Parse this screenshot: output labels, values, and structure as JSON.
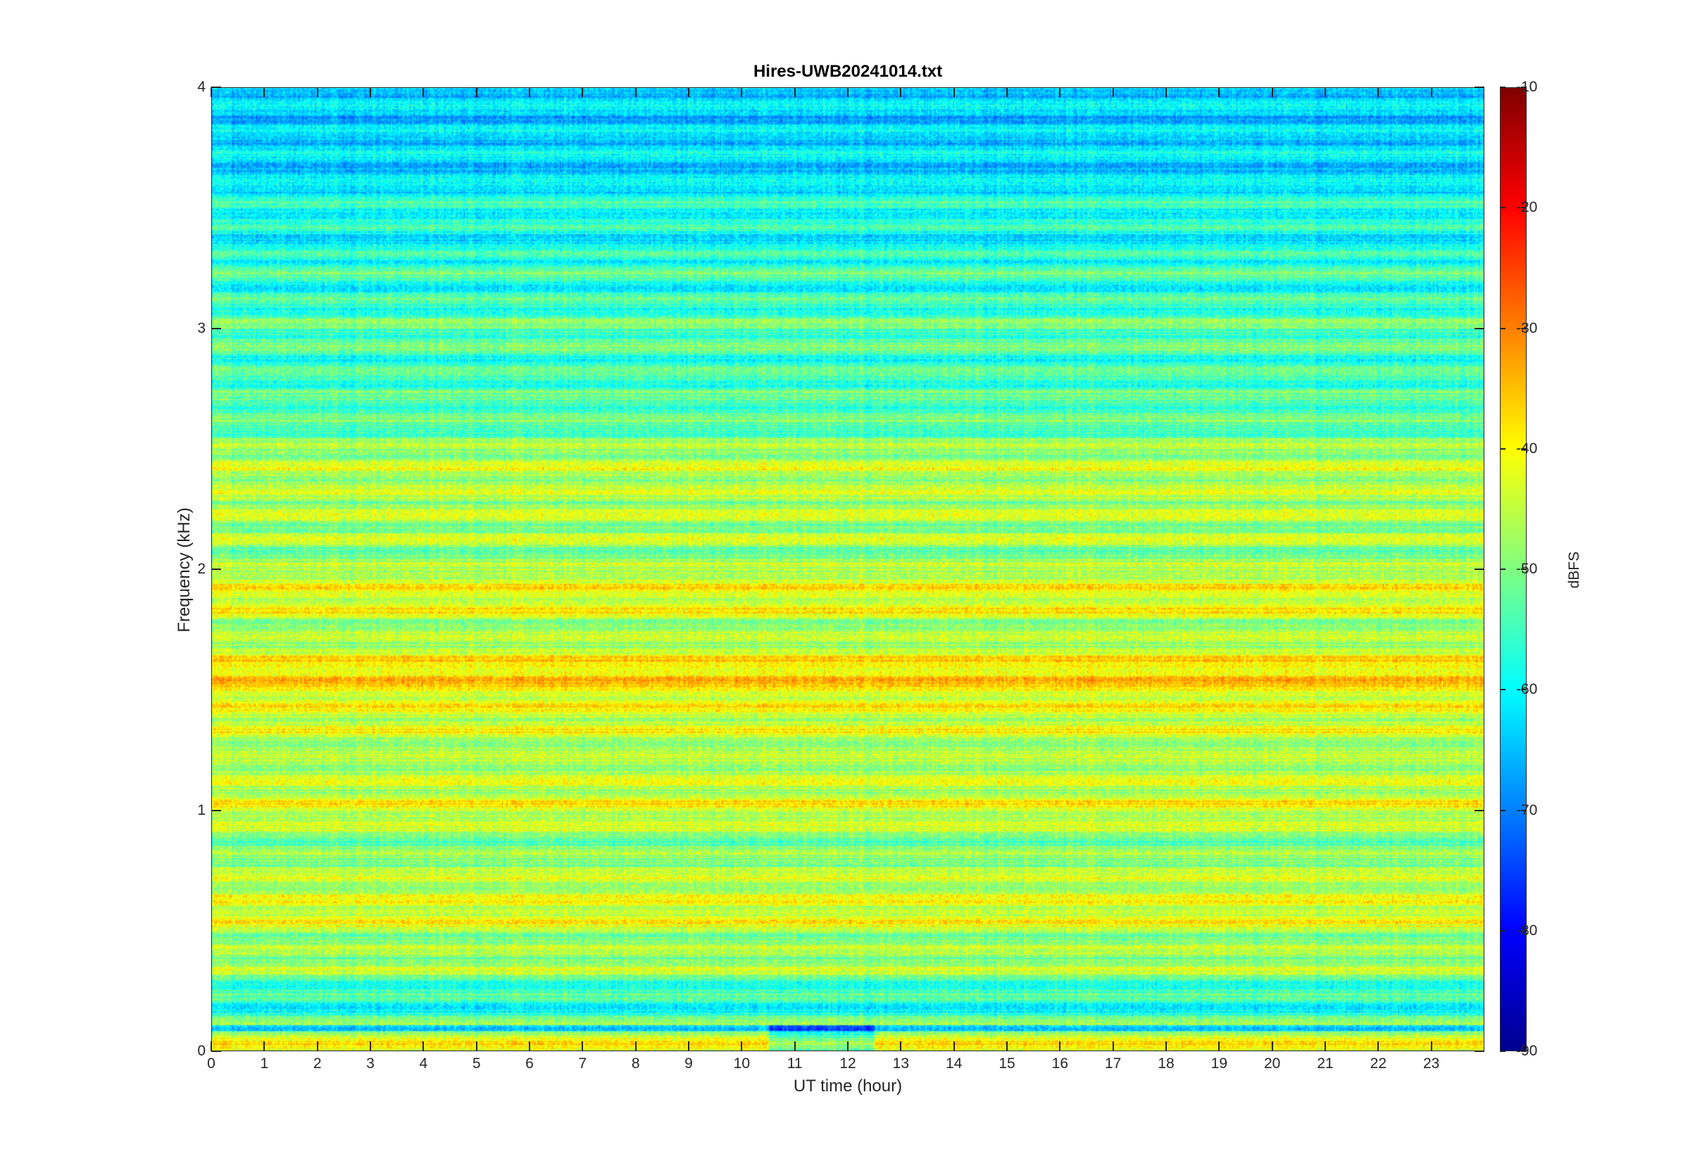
{
  "chart_data": {
    "type": "heatmap",
    "title": "Hires-UWB20241014.txt",
    "xlabel": "UT time (hour)",
    "ylabel": "Frequency (kHz)",
    "colorbar_label": "dBFS",
    "xlim": [
      0,
      24
    ],
    "ylim": [
      0,
      4
    ],
    "clim": [
      -90,
      -10
    ],
    "colormap": "jet",
    "x_ticks": [
      0,
      1,
      2,
      3,
      4,
      5,
      6,
      7,
      8,
      9,
      10,
      11,
      12,
      13,
      14,
      15,
      16,
      17,
      18,
      19,
      20,
      21,
      22,
      23
    ],
    "y_ticks": [
      0,
      1,
      2,
      3,
      4
    ],
    "colorbar_ticks": [
      -90,
      -80,
      -70,
      -60,
      -50,
      -40,
      -30,
      -20,
      -10
    ],
    "frequency_band_profile": {
      "frequency_khz": [
        0.05,
        0.15,
        0.25,
        0.35,
        0.45,
        0.55,
        0.65,
        0.75,
        0.85,
        0.95,
        1.05,
        1.15,
        1.25,
        1.35,
        1.45,
        1.55,
        1.65,
        1.75,
        1.85,
        1.95,
        2.05,
        2.15,
        2.25,
        2.35,
        2.45,
        2.55,
        2.65,
        2.75,
        2.85,
        2.95,
        3.05,
        3.15,
        3.25,
        3.35,
        3.45,
        3.55,
        3.65,
        3.75,
        3.85,
        3.95
      ],
      "typical_level_dbfs": [
        -42,
        -58,
        -56,
        -46,
        -50,
        -42,
        -44,
        -46,
        -52,
        -44,
        -42,
        -45,
        -48,
        -42,
        -43,
        -36,
        -42,
        -48,
        -40,
        -42,
        -50,
        -47,
        -46,
        -46,
        -44,
        -52,
        -54,
        -54,
        -55,
        -53,
        -52,
        -58,
        -54,
        -60,
        -58,
        -58,
        -63,
        -62,
        -64,
        -63
      ]
    }
  }
}
